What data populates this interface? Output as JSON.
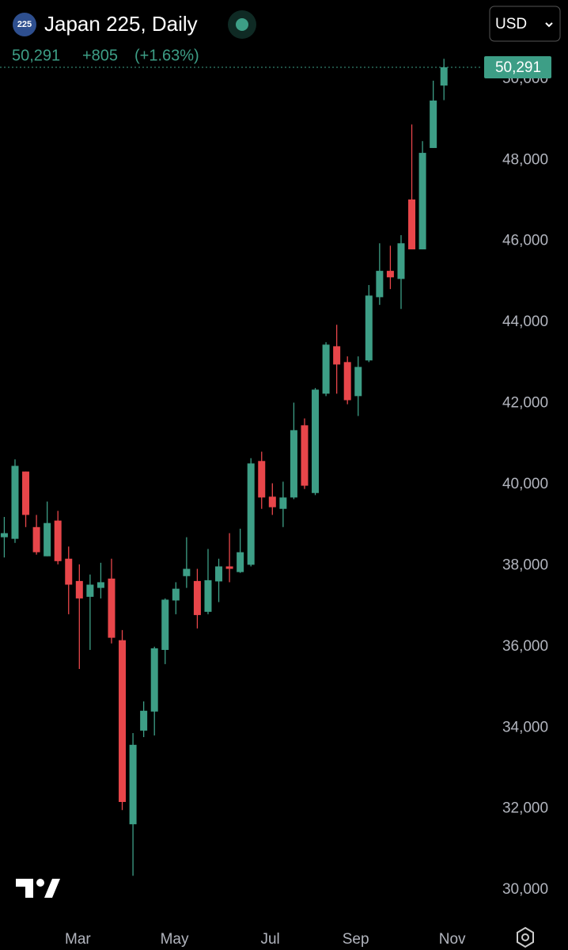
{
  "header": {
    "logo": "225",
    "title": "Japan 225, Daily",
    "price": "50,291",
    "change": "+805",
    "change_pct": "(+1.63%)",
    "currency": "USD"
  },
  "chart_data": {
    "type": "candlestick",
    "up_color": "#3d9e86",
    "down_color": "#e8464a",
    "series": {
      "open": [
        38700,
        38660,
        40320,
        38950,
        38230,
        39110,
        38170,
        37620,
        37230,
        37450,
        37680,
        36160,
        31620,
        33930,
        34400,
        35920,
        37140,
        37740,
        37620,
        36860,
        37610,
        37980,
        37840,
        38020,
        40580,
        39700,
        39400,
        39680,
        41460,
        39790,
        42240,
        43410,
        43020,
        42180,
        43060,
        44620,
        45270,
        45070,
        47030,
        45800,
        48300,
        49840
      ],
      "high": [
        39200,
        40620,
        40320,
        39250,
        39580,
        39350,
        38470,
        38030,
        37780,
        38070,
        38170,
        36410,
        33870,
        34650,
        36000,
        37190,
        37590,
        38700,
        37920,
        38410,
        38170,
        38800,
        38910,
        40650,
        40810,
        40030,
        40070,
        42020,
        41630,
        42380,
        43510,
        43940,
        43160,
        43160,
        44920,
        45950,
        45890,
        46150,
        48880,
        48470,
        49960,
        50500
      ],
      "low": [
        38200,
        38560,
        38950,
        38270,
        38230,
        38030,
        36800,
        35450,
        35920,
        37190,
        36080,
        31970,
        30350,
        33770,
        33810,
        35570,
        36800,
        37450,
        36450,
        36800,
        37100,
        37590,
        37820,
        37980,
        39400,
        39250,
        38950,
        39640,
        39890,
        39740,
        42180,
        42240,
        41980,
        41690,
        43020,
        44430,
        44820,
        44330,
        45800,
        45800,
        48300,
        49480
      ],
      "close": [
        38800,
        40460,
        39250,
        38330,
        39050,
        38110,
        37530,
        37190,
        37530,
        37590,
        36220,
        32170,
        33580,
        34420,
        35960,
        37160,
        37430,
        37920,
        36780,
        37640,
        37980,
        37920,
        38330,
        40520,
        39680,
        39440,
        39680,
        41340,
        39970,
        42340,
        43450,
        42960,
        42080,
        42900,
        44660,
        45270,
        45110,
        45950,
        45800,
        48180,
        49470,
        50291
      ]
    },
    "xlim": [
      -0.4,
      44.6
    ],
    "ylim": [
      29300,
      51950
    ],
    "xticks": [
      {
        "value": 6.86,
        "label": "Mar"
      },
      {
        "value": 15.87,
        "label": "May"
      },
      {
        "value": 24.8,
        "label": "Jul"
      },
      {
        "value": 32.77,
        "label": "Sep"
      },
      {
        "value": 41.77,
        "label": "Nov"
      }
    ],
    "yticks": [
      {
        "value": 30000,
        "label": "30,000"
      },
      {
        "value": 32000,
        "label": "32,000"
      },
      {
        "value": 34000,
        "label": "34,000"
      },
      {
        "value": 36000,
        "label": "36,000"
      },
      {
        "value": 38000,
        "label": "38,000"
      },
      {
        "value": 40000,
        "label": "40,000"
      },
      {
        "value": 42000,
        "label": "42,000"
      },
      {
        "value": 44000,
        "label": "44,000"
      },
      {
        "value": 46000,
        "label": "46,000"
      },
      {
        "value": 48000,
        "label": "48,000"
      },
      {
        "value": 50000,
        "label": "50,000"
      }
    ]
  }
}
